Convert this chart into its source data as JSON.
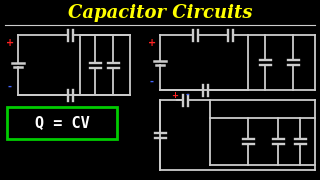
{
  "title": "Capacitor Circuits",
  "title_color": "#FFFF00",
  "title_fontsize": 13,
  "bg_color": "#000000",
  "formula": "Q = CV",
  "formula_color": "#FFFFFF",
  "formula_box_color": "#00CC00",
  "wire_color": "#CCCCCC",
  "plus_color": "#FF2222",
  "minus_color": "#4466FF",
  "cap_color": "#CCCCCC",
  "divider_color": "#CCCCCC"
}
